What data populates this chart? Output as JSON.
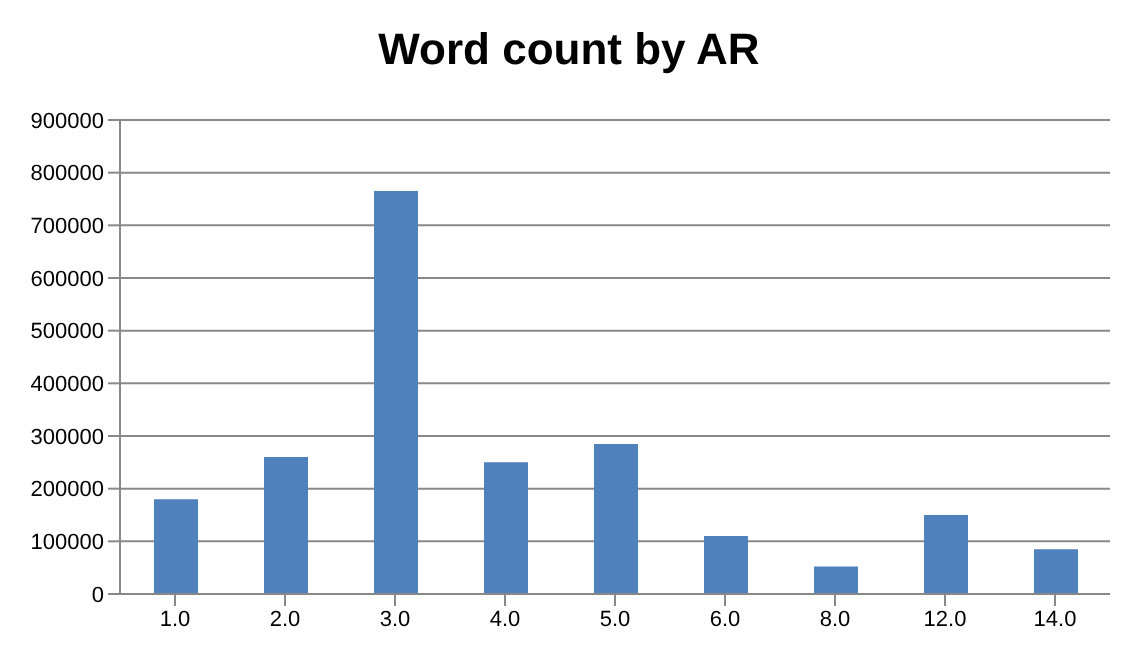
{
  "chart_data": {
    "type": "bar",
    "title": "Word count by AR",
    "categories": [
      "1.0",
      "2.0",
      "3.0",
      "4.0",
      "5.0",
      "6.0",
      "8.0",
      "12.0",
      "14.0"
    ],
    "values": [
      180000,
      260000,
      765000,
      250000,
      285000,
      110000,
      52000,
      150000,
      85000
    ],
    "color": "#4f81bd",
    "ylim": [
      0,
      900000
    ],
    "yticks": [
      0,
      100000,
      200000,
      300000,
      400000,
      500000,
      600000,
      700000,
      800000,
      900000
    ],
    "grid": "y"
  }
}
